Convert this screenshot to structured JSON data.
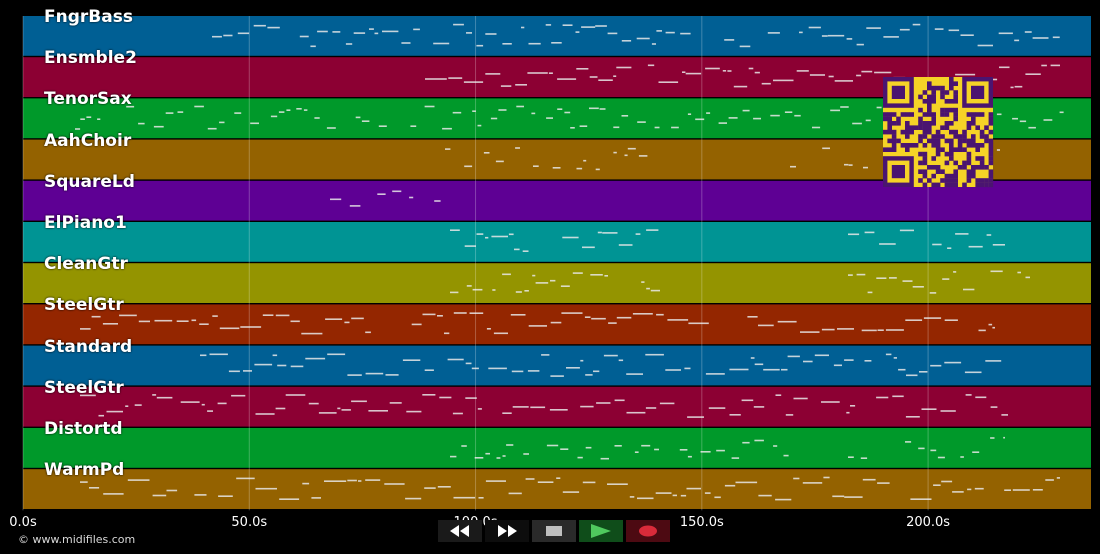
{
  "tracks": [
    {
      "label": "FngrBass",
      "color": "#005f94"
    },
    {
      "label": "Ensmble2",
      "color": "#8c0033"
    },
    {
      "label": "TenorSax",
      "color": "#00992a"
    },
    {
      "label": "AahChoir",
      "color": "#946200"
    },
    {
      "label": "SquareLd",
      "color": "#5e0094"
    },
    {
      "label": "ElPiano1",
      "color": "#009494"
    },
    {
      "label": "CleanGtr",
      "color": "#949400"
    },
    {
      "label": "SteelGtr",
      "color": "#942600"
    },
    {
      "label": "Standard",
      "color": "#005f94"
    },
    {
      "label": "SteelGtr",
      "color": "#8c0033"
    },
    {
      "label": "Distortd",
      "color": "#00992a"
    },
    {
      "label": "WarmPd",
      "color": "#946200"
    }
  ],
  "time_axis": {
    "ticks": [
      "0.0s",
      "50.0s",
      "100.0s",
      "150.0s",
      "200.0s"
    ],
    "tick_values": [
      0,
      50,
      100,
      150,
      200
    ],
    "max_seconds": 236
  },
  "copyright": "© www.midifiles.com",
  "controls": {
    "rewind": "rewind-icon",
    "fast_forward": "fast-forward-icon",
    "stop": "stop-icon",
    "play": "play-icon",
    "record": "record-icon"
  },
  "qr_code": {
    "colors": {
      "dark": "#4a1470",
      "light": "#f5d327"
    }
  }
}
